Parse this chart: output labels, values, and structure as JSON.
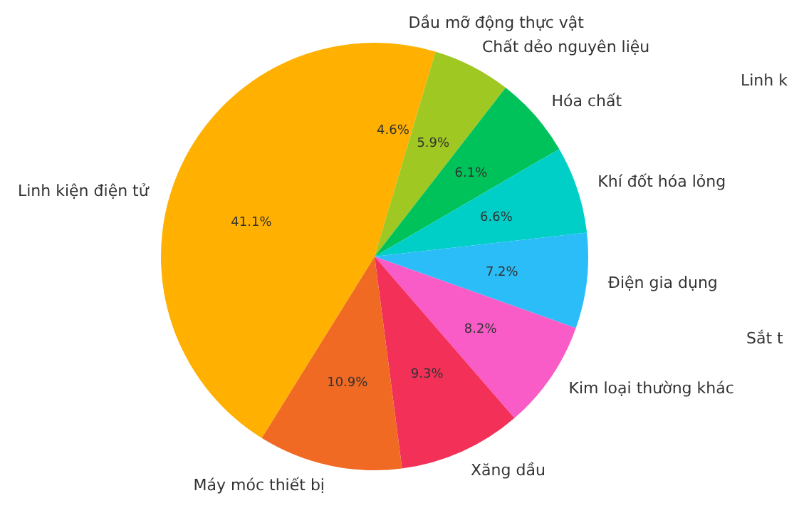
{
  "chart_data": {
    "type": "pie",
    "categories": [
      "Linh kiện điện tử",
      "Máy móc thiết bị",
      "Xăng dầu",
      "Kim loại thường khác",
      "Điện gia dụng",
      "Khí đốt hóa lỏng",
      "Hóa chất",
      "Chất dẻo nguyên liệu",
      "Dầu mỡ động thực vật"
    ],
    "values": [
      41.1,
      10.9,
      9.3,
      8.2,
      7.2,
      6.6,
      6.1,
      5.9,
      4.6
    ],
    "value_labels": [
      "41.1%",
      "10.9%",
      "9.3%",
      "8.2%",
      "7.2%",
      "6.6%",
      "6.1%",
      "5.9%",
      "4.6%"
    ],
    "colors": [
      "#ffb000",
      "#f06a24",
      "#f33158",
      "#f95cc6",
      "#2bbdf8",
      "#00cfc8",
      "#00c25a",
      "#a0c822",
      "#ffb000"
    ],
    "annotations": [
      "Linh k",
      "Sắt t"
    ]
  }
}
